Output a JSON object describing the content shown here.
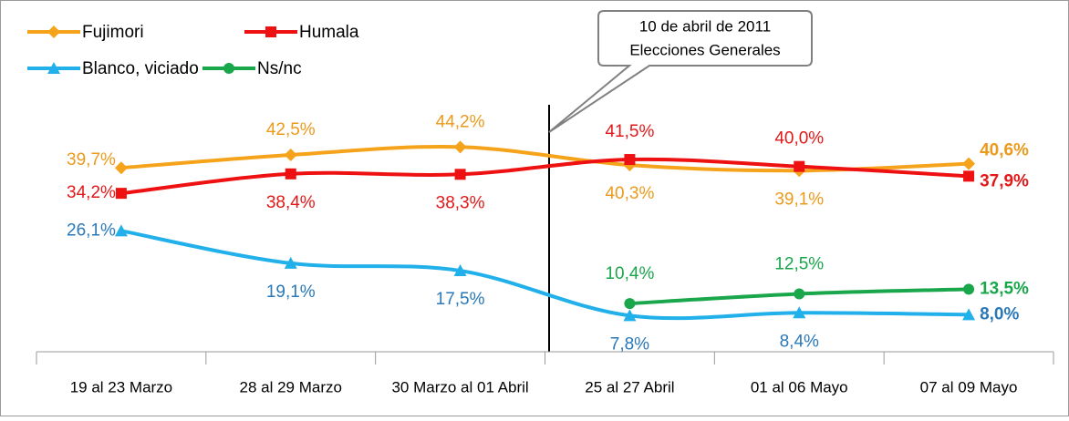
{
  "chart_data": {
    "type": "line",
    "categories": [
      "19 al 23 Marzo",
      "28 al 29 Marzo",
      "30 Marzo al 01 Abril",
      "25 al 27 Abril",
      "01 al 06 Mayo",
      "07 al 09 Mayo"
    ],
    "series": [
      {
        "name": "Fujimori",
        "color": "#f5a31a",
        "label_color": "#eb9a1c",
        "marker": "diamond",
        "values": [
          39.7,
          42.5,
          44.2,
          40.3,
          39.1,
          40.6
        ],
        "value_labels": [
          "39,7%",
          "42,5%",
          "44,2%",
          "40,3%",
          "39,1%",
          "40,6%"
        ]
      },
      {
        "name": "Humala",
        "color": "#ee1111",
        "label_color": "#e31818",
        "marker": "square",
        "values": [
          34.2,
          38.4,
          38.3,
          41.5,
          40.0,
          37.9
        ],
        "value_labels": [
          "34,2%",
          "38,4%",
          "38,3%",
          "41,5%",
          "40,0%",
          "37,9%"
        ]
      },
      {
        "name": "Blanco, viciado",
        "color": "#22b0ea",
        "label_color": "#2a78b8",
        "marker": "triangle",
        "values": [
          26.1,
          19.1,
          17.5,
          7.8,
          8.4,
          8.0
        ],
        "value_labels": [
          "26,1%",
          "19,1%",
          "17,5%",
          "7,8%",
          "8,4%",
          "8,0%"
        ]
      },
      {
        "name": "Ns/nc",
        "color": "#1aa64b",
        "label_color": "#1aa64b",
        "marker": "circle",
        "values": [
          null,
          null,
          null,
          10.4,
          12.5,
          13.5
        ],
        "value_labels": [
          null,
          null,
          null,
          "10,4%",
          "12,5%",
          "13,5%"
        ]
      }
    ],
    "ylim": [
      0,
      60
    ],
    "annotation": [
      "10 de abril de 2011",
      "Elecciones Generales"
    ],
    "smooth": true
  }
}
